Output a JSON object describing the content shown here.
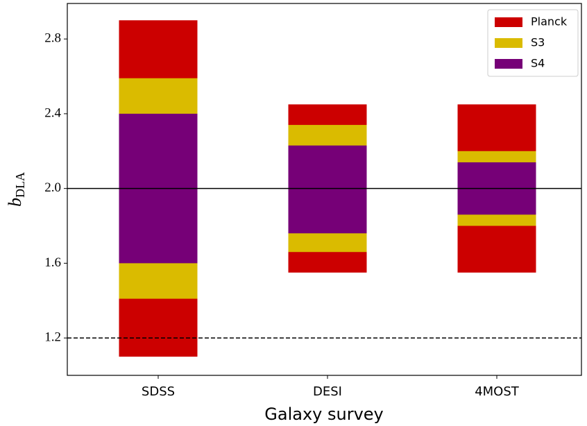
{
  "chart_data": {
    "type": "range-bar",
    "categories": [
      "SDSS",
      "DESI",
      "4MOST"
    ],
    "series": [
      {
        "name": "Planck",
        "color": "#cc0000",
        "values": [
          [
            1.1,
            2.9
          ],
          [
            1.55,
            2.45
          ],
          [
            1.55,
            2.45
          ]
        ]
      },
      {
        "name": "S3",
        "color": "#dabb00",
        "values": [
          [
            1.41,
            2.59
          ],
          [
            1.66,
            2.34
          ],
          [
            1.8,
            2.2
          ]
        ]
      },
      {
        "name": "S4",
        "color": "#760077",
        "values": [
          [
            1.6,
            2.4
          ],
          [
            1.76,
            2.23
          ],
          [
            1.86,
            2.14
          ]
        ]
      }
    ],
    "xlabel": "Galaxy survey",
    "ylabel": "b",
    "ylabel_subscript": "DLA",
    "ylim": [
      1.0,
      2.99
    ],
    "yticks": [
      {
        "value": 1.2,
        "label": "1.2"
      },
      {
        "value": 1.6,
        "label": "1.6"
      },
      {
        "value": 2.0,
        "label": "2.0"
      },
      {
        "value": 2.4,
        "label": "2.4"
      },
      {
        "value": 2.8,
        "label": "2.8"
      }
    ],
    "hlines": [
      {
        "y": 2.0,
        "style": "solid"
      },
      {
        "y": 1.2,
        "style": "dashed"
      }
    ],
    "legend": "upper right"
  }
}
